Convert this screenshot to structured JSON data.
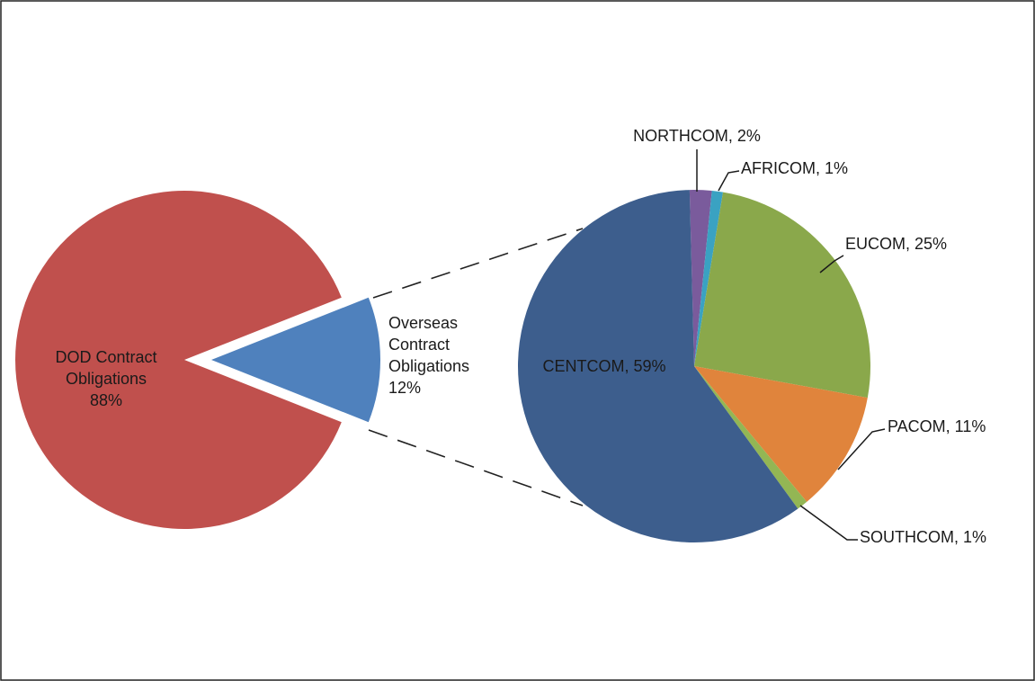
{
  "chart_data": [
    {
      "type": "pie",
      "values": [
        88,
        12
      ],
      "value_labels": [
        [
          "DOD Contract",
          "Obligations",
          "88%"
        ],
        [
          "Overseas",
          "Contract",
          "Obligations",
          "12%"
        ]
      ],
      "colors": [
        "#c0504d",
        "#4f81bd"
      ],
      "exploded": [
        false,
        true
      ]
    },
    {
      "type": "pie",
      "values": [
        2,
        1,
        25,
        11,
        1,
        59
      ],
      "value_labels": [
        "NORTHCOM, 2%",
        "AFRICOM, 1%",
        "EUCOM, 25%",
        "PACOM, 11%",
        "SOUTHCOM, 1%",
        "CENTCOM, 59%"
      ],
      "colors": [
        "#7a5b9c",
        "#3aa2c2",
        "#8aa84b",
        "#e0843c",
        "#93b654",
        "#3d5e8d"
      ]
    }
  ]
}
